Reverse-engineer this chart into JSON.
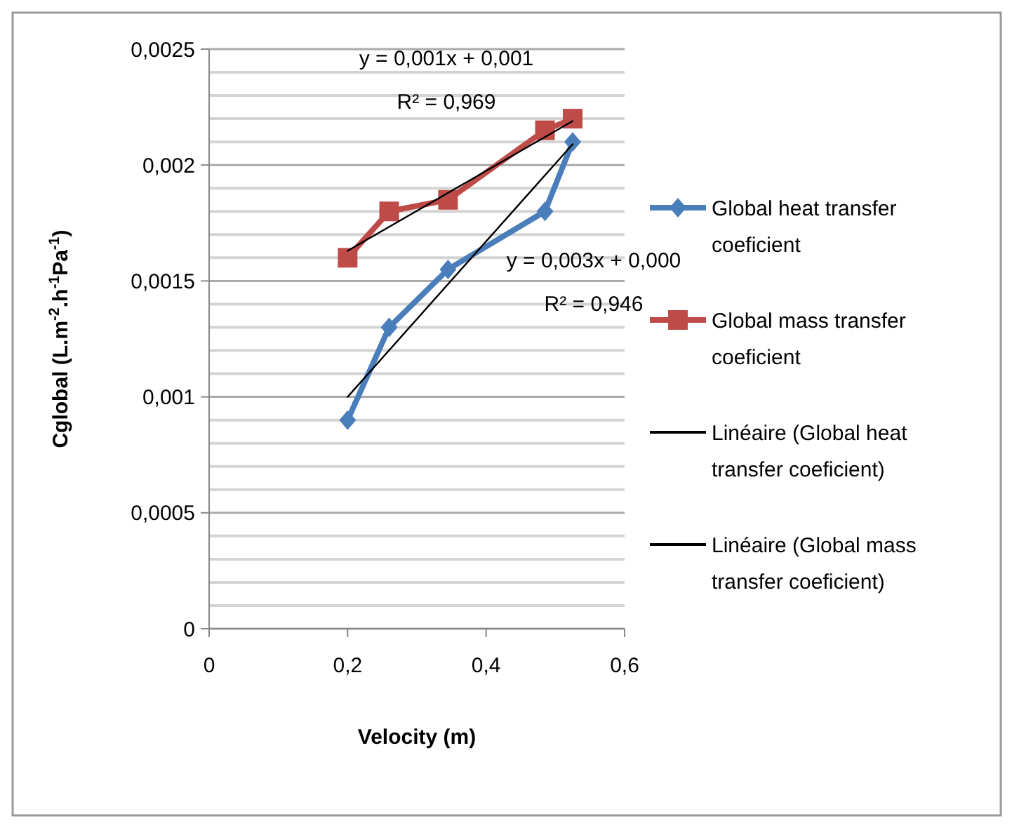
{
  "chart_data": {
    "type": "line",
    "xlabel": "Velocity (m)",
    "ylabel": "Cglobal (L.m$^{-2}$.h$^{-1}$Pa$^{-1}$)",
    "xlim": [
      0,
      0.6
    ],
    "xticks": [
      0,
      {
        "value": 0.2,
        "label": "0,2"
      },
      {
        "value": 0.4,
        "label": "0,4"
      },
      {
        "value": 0.6,
        "label": "0,6"
      }
    ],
    "ylim": [
      0,
      0.0025
    ],
    "yticks": [
      0,
      {
        "value": 0.0001,
        "label": null
      },
      {
        "value": 0.0002,
        "label": null
      },
      {
        "value": 0.0003,
        "label": null
      },
      {
        "value": 0.0004,
        "label": null
      },
      {
        "value": 0.0005,
        "label": "0,0005"
      },
      {
        "value": 0.0006,
        "label": null
      },
      {
        "value": 0.0007,
        "label": null
      },
      {
        "value": 0.0008,
        "label": null
      },
      {
        "value": 0.0009,
        "label": null
      },
      {
        "value": 0.001,
        "label": "0,001"
      },
      {
        "value": 0.0011,
        "label": null
      },
      {
        "value": 0.0012,
        "label": null
      },
      {
        "value": 0.0013,
        "label": null
      },
      {
        "value": 0.0014,
        "label": null
      },
      {
        "value": 0.0015,
        "label": "0,0015"
      },
      {
        "value": 0.0016,
        "label": null
      },
      {
        "value": 0.0017,
        "label": null
      },
      {
        "value": 0.0018,
        "label": null
      },
      {
        "value": 0.0019,
        "label": null
      },
      {
        "value": 0.002,
        "label": "0,002"
      },
      {
        "value": 0.0021,
        "label": null
      },
      {
        "value": 0.0022,
        "label": null
      },
      {
        "value": 0.0023,
        "label": null
      },
      {
        "value": 0.0024,
        "label": null
      },
      {
        "value": 0.0025,
        "label": "0,0025"
      }
    ],
    "grid": "y",
    "legend": "right",
    "series": [
      {
        "name": "Global heat transfer coeficient",
        "color": "#4a7ebb",
        "marker": "diamond",
        "x": [
          0.2,
          0.26,
          0.345,
          0.485,
          0.525
        ],
        "values": [
          0.0009,
          0.0013,
          0.00155,
          0.0018,
          0.0021
        ]
      },
      {
        "name": "Global mass transfer coeficient",
        "color": "#be4b48",
        "marker": "square",
        "x": [
          0.2,
          0.26,
          0.345,
          0.485,
          0.525
        ],
        "values": [
          0.0016,
          0.0018,
          0.00185,
          0.00215,
          0.0022
        ]
      },
      {
        "name": "Linéaire (Global heat transfer coeficient)",
        "color": "#000000",
        "marker": "none",
        "x": [
          0.2,
          0.525
        ],
        "values": [
          0.001,
          0.00209
        ]
      },
      {
        "name": "Linéaire (Global mass transfer coeficient)",
        "color": "#000000",
        "marker": "none",
        "x": [
          0.2,
          0.525
        ],
        "values": [
          0.00163,
          0.00219
        ]
      }
    ],
    "annotations": [
      "y = 0,001x + 0,001",
      "R² = 0,969",
      "y = 0,003x + 0,000",
      "R² = 0,946"
    ]
  }
}
